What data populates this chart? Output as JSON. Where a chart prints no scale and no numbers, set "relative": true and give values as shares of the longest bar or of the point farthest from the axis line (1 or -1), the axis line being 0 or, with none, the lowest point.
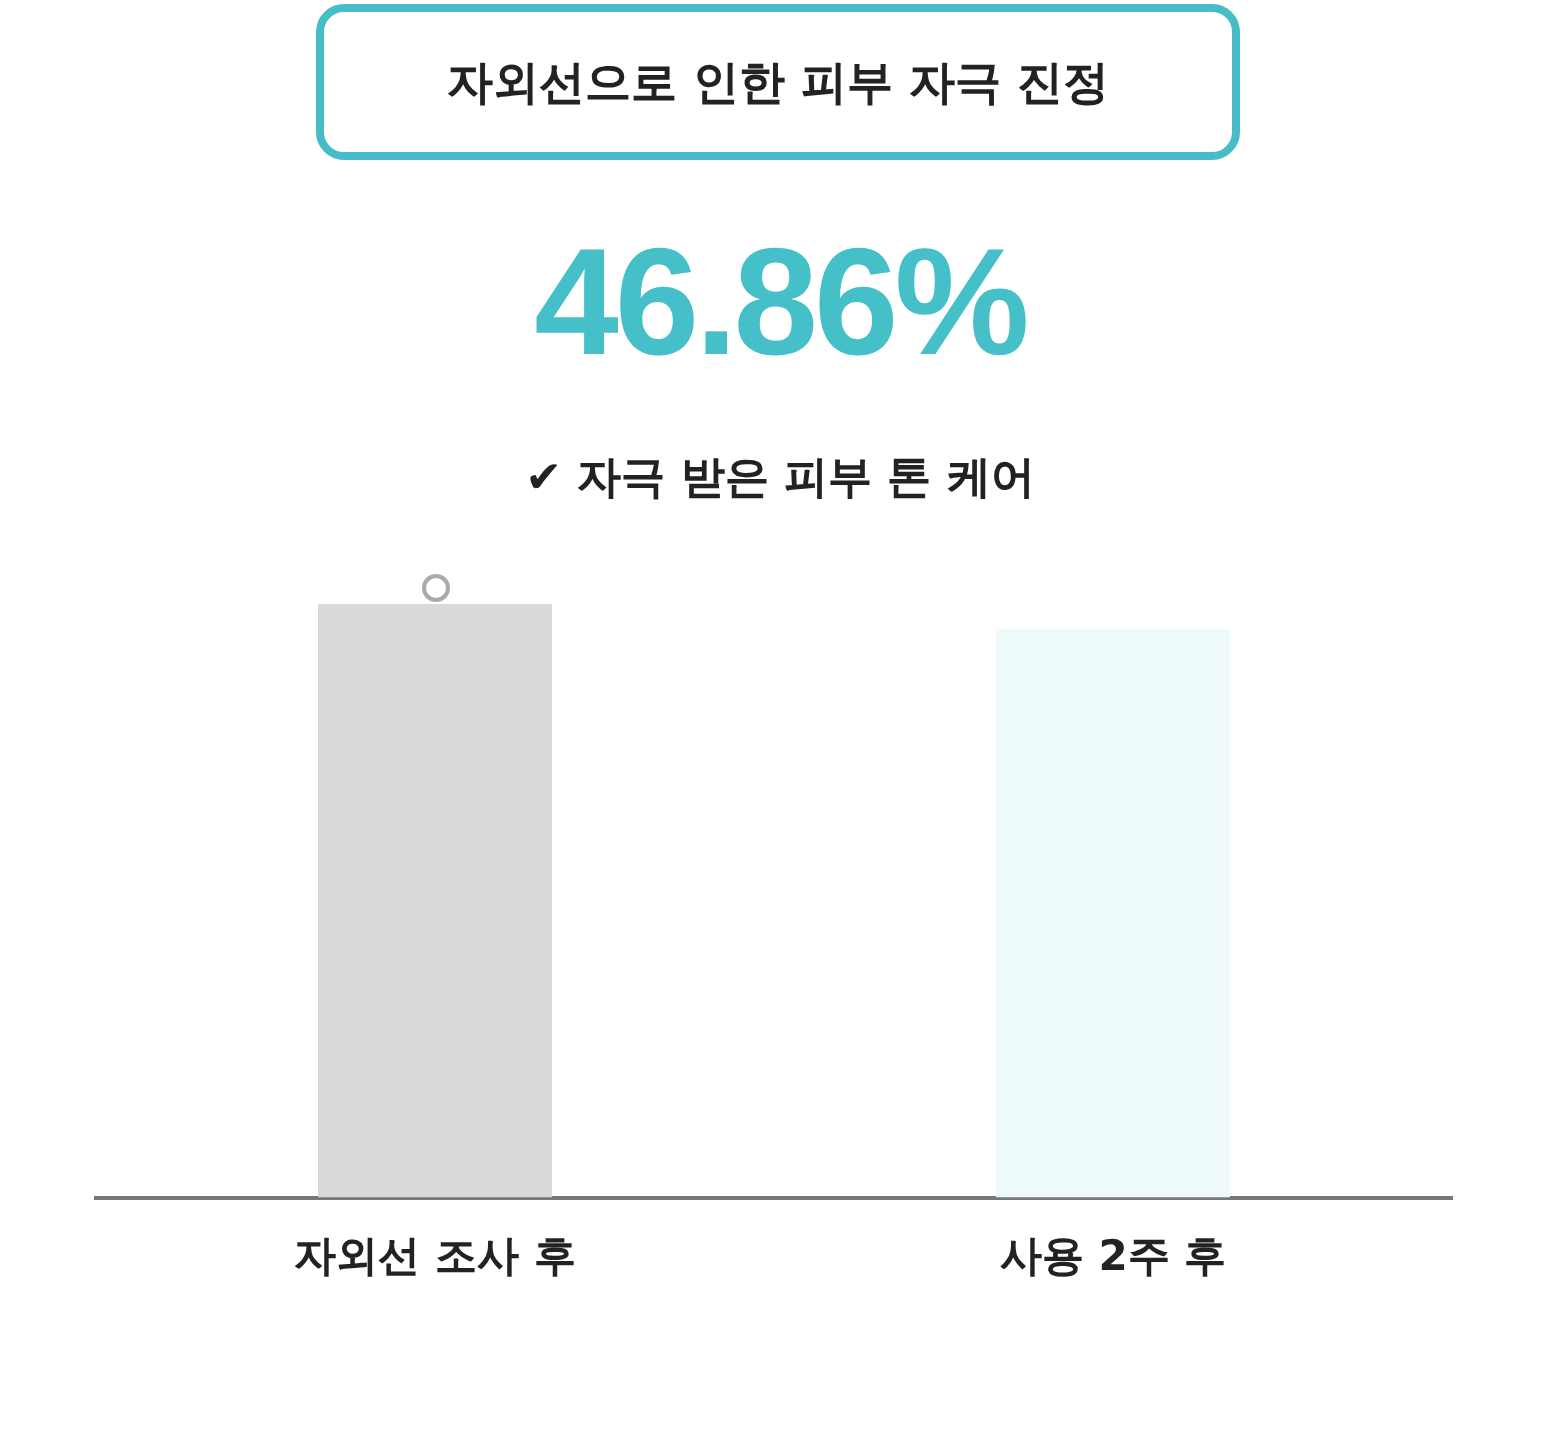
{
  "chart_data": {
    "type": "bar",
    "title": "자외선으로 인한 피부 자극 진정",
    "annotations": [
      "46.86%",
      "✔ 자극 받은 피부 톤 케어"
    ],
    "categories": [
      "자외선 조사 후",
      "사용 2주 후"
    ],
    "values": [
      1,
      0.958
    ],
    "colors": [
      "#d9d9d9",
      "#eefafa"
    ],
    "relative": true
  }
}
